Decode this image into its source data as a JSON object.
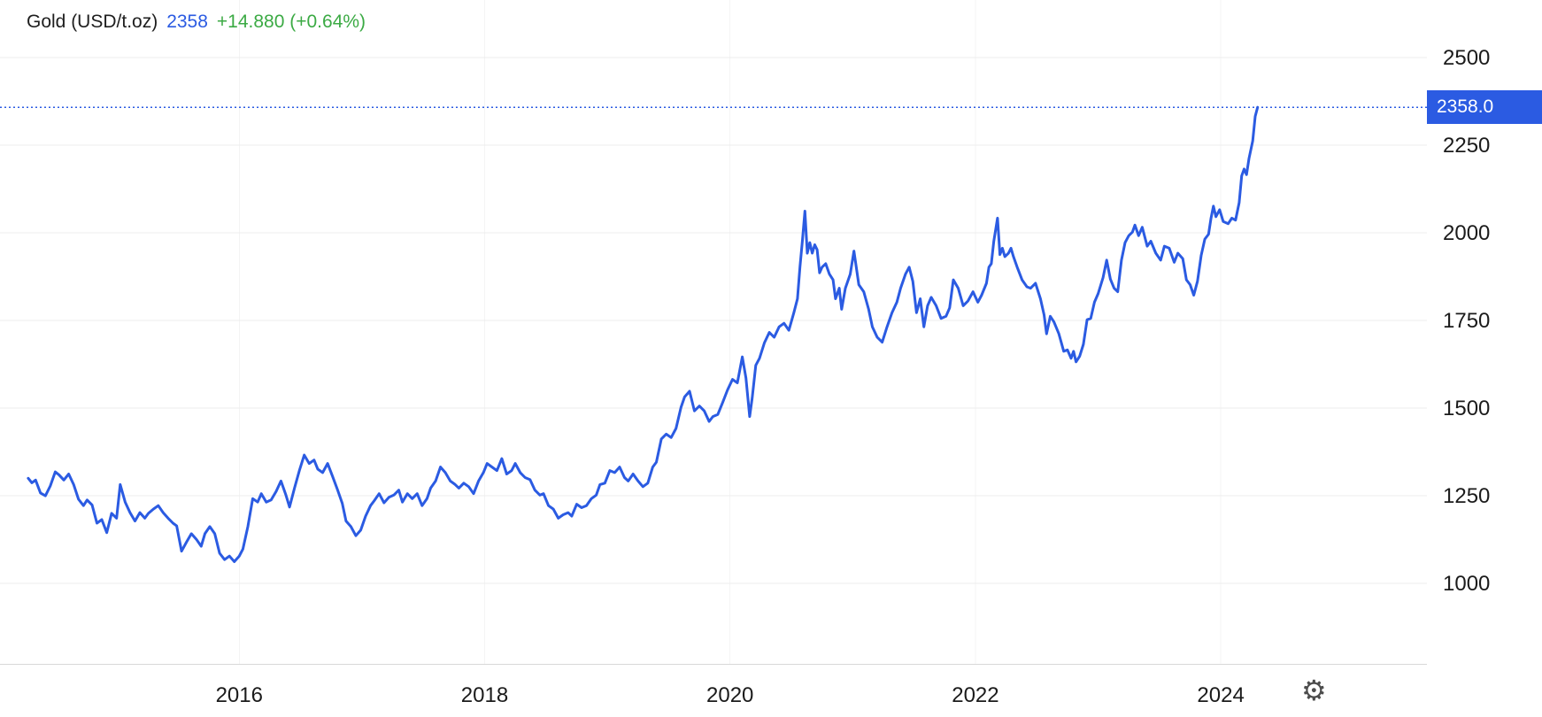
{
  "header": {
    "instrument": "Gold (USD/t.oz)",
    "price": "2358",
    "change": "+14.880 (+0.64%)"
  },
  "price_marker": {
    "label": "2358.0",
    "value": 2358
  },
  "icons": {
    "settings_gear": "⚙"
  },
  "colors": {
    "line_blue": "#2B5BE2",
    "positive_green": "#3BAA44",
    "grid": "#ececec",
    "badge_text": "#ffffff"
  },
  "chart_data": {
    "type": "line",
    "title": "Gold (USD/t.oz)",
    "xlabel": "",
    "ylabel": "",
    "unit": "USD/t.oz",
    "current_value": 2358,
    "change_abs": 14.88,
    "change_pct": 0.64,
    "x_is": "decimal year",
    "x_ticks": [
      2016,
      2018,
      2020,
      2022,
      2024
    ],
    "y_ticks": [
      1000,
      1250,
      1500,
      1750,
      2000,
      2250,
      2500
    ],
    "xlim": [
      2014.05,
      2025.68
    ],
    "ylim": [
      768,
      2664
    ],
    "grid": "horizontal light + vertical very light",
    "legend": "none",
    "series": [
      {
        "name": "Gold spot price (USD/t.oz)",
        "points": [
          [
            2014.28,
            1300
          ],
          [
            2014.31,
            1287
          ],
          [
            2014.34,
            1295
          ],
          [
            2014.38,
            1258
          ],
          [
            2014.42,
            1250
          ],
          [
            2014.46,
            1278
          ],
          [
            2014.5,
            1318
          ],
          [
            2014.53,
            1310
          ],
          [
            2014.57,
            1295
          ],
          [
            2014.61,
            1312
          ],
          [
            2014.65,
            1282
          ],
          [
            2014.69,
            1240
          ],
          [
            2014.73,
            1222
          ],
          [
            2014.76,
            1238
          ],
          [
            2014.8,
            1224
          ],
          [
            2014.84,
            1172
          ],
          [
            2014.88,
            1182
          ],
          [
            2014.92,
            1145
          ],
          [
            2014.96,
            1200
          ],
          [
            2015.0,
            1186
          ],
          [
            2015.03,
            1282
          ],
          [
            2015.07,
            1232
          ],
          [
            2015.11,
            1202
          ],
          [
            2015.15,
            1178
          ],
          [
            2015.19,
            1202
          ],
          [
            2015.23,
            1186
          ],
          [
            2015.26,
            1200
          ],
          [
            2015.3,
            1212
          ],
          [
            2015.34,
            1222
          ],
          [
            2015.38,
            1202
          ],
          [
            2015.42,
            1186
          ],
          [
            2015.46,
            1172
          ],
          [
            2015.49,
            1164
          ],
          [
            2015.53,
            1092
          ],
          [
            2015.57,
            1118
          ],
          [
            2015.61,
            1142
          ],
          [
            2015.65,
            1126
          ],
          [
            2015.69,
            1106
          ],
          [
            2015.72,
            1142
          ],
          [
            2015.76,
            1162
          ],
          [
            2015.8,
            1142
          ],
          [
            2015.84,
            1086
          ],
          [
            2015.88,
            1068
          ],
          [
            2015.92,
            1078
          ],
          [
            2015.96,
            1062
          ],
          [
            2016.0,
            1078
          ],
          [
            2016.03,
            1098
          ],
          [
            2016.07,
            1162
          ],
          [
            2016.11,
            1242
          ],
          [
            2016.15,
            1232
          ],
          [
            2016.18,
            1256
          ],
          [
            2016.22,
            1232
          ],
          [
            2016.26,
            1238
          ],
          [
            2016.3,
            1262
          ],
          [
            2016.34,
            1292
          ],
          [
            2016.38,
            1252
          ],
          [
            2016.41,
            1218
          ],
          [
            2016.45,
            1272
          ],
          [
            2016.49,
            1322
          ],
          [
            2016.53,
            1366
          ],
          [
            2016.57,
            1342
          ],
          [
            2016.61,
            1352
          ],
          [
            2016.64,
            1326
          ],
          [
            2016.68,
            1316
          ],
          [
            2016.72,
            1342
          ],
          [
            2016.76,
            1306
          ],
          [
            2016.8,
            1268
          ],
          [
            2016.84,
            1228
          ],
          [
            2016.87,
            1178
          ],
          [
            2016.91,
            1162
          ],
          [
            2016.95,
            1136
          ],
          [
            2016.99,
            1152
          ],
          [
            2017.03,
            1192
          ],
          [
            2017.07,
            1222
          ],
          [
            2017.1,
            1236
          ],
          [
            2017.14,
            1256
          ],
          [
            2017.18,
            1230
          ],
          [
            2017.22,
            1246
          ],
          [
            2017.26,
            1252
          ],
          [
            2017.3,
            1266
          ],
          [
            2017.33,
            1232
          ],
          [
            2017.37,
            1256
          ],
          [
            2017.41,
            1242
          ],
          [
            2017.45,
            1256
          ],
          [
            2017.49,
            1222
          ],
          [
            2017.53,
            1242
          ],
          [
            2017.56,
            1272
          ],
          [
            2017.6,
            1292
          ],
          [
            2017.64,
            1332
          ],
          [
            2017.68,
            1316
          ],
          [
            2017.72,
            1292
          ],
          [
            2017.76,
            1282
          ],
          [
            2017.79,
            1272
          ],
          [
            2017.83,
            1286
          ],
          [
            2017.87,
            1276
          ],
          [
            2017.91,
            1256
          ],
          [
            2017.95,
            1292
          ],
          [
            2017.99,
            1316
          ],
          [
            2018.02,
            1342
          ],
          [
            2018.06,
            1332
          ],
          [
            2018.1,
            1322
          ],
          [
            2018.14,
            1356
          ],
          [
            2018.18,
            1312
          ],
          [
            2018.22,
            1322
          ],
          [
            2018.25,
            1342
          ],
          [
            2018.29,
            1316
          ],
          [
            2018.33,
            1302
          ],
          [
            2018.37,
            1296
          ],
          [
            2018.41,
            1266
          ],
          [
            2018.45,
            1252
          ],
          [
            2018.48,
            1256
          ],
          [
            2018.52,
            1222
          ],
          [
            2018.56,
            1212
          ],
          [
            2018.6,
            1186
          ],
          [
            2018.64,
            1196
          ],
          [
            2018.68,
            1202
          ],
          [
            2018.71,
            1192
          ],
          [
            2018.75,
            1226
          ],
          [
            2018.79,
            1216
          ],
          [
            2018.83,
            1222
          ],
          [
            2018.87,
            1242
          ],
          [
            2018.91,
            1252
          ],
          [
            2018.94,
            1282
          ],
          [
            2018.98,
            1286
          ],
          [
            2019.02,
            1322
          ],
          [
            2019.06,
            1316
          ],
          [
            2019.1,
            1332
          ],
          [
            2019.14,
            1302
          ],
          [
            2019.17,
            1292
          ],
          [
            2019.21,
            1312
          ],
          [
            2019.25,
            1292
          ],
          [
            2019.29,
            1276
          ],
          [
            2019.33,
            1286
          ],
          [
            2019.37,
            1332
          ],
          [
            2019.4,
            1346
          ],
          [
            2019.44,
            1412
          ],
          [
            2019.48,
            1426
          ],
          [
            2019.52,
            1416
          ],
          [
            2019.56,
            1442
          ],
          [
            2019.6,
            1502
          ],
          [
            2019.63,
            1532
          ],
          [
            2019.67,
            1548
          ],
          [
            2019.71,
            1492
          ],
          [
            2019.75,
            1506
          ],
          [
            2019.79,
            1492
          ],
          [
            2019.83,
            1462
          ],
          [
            2019.86,
            1476
          ],
          [
            2019.9,
            1482
          ],
          [
            2019.94,
            1516
          ],
          [
            2019.98,
            1552
          ],
          [
            2020.02,
            1582
          ],
          [
            2020.06,
            1572
          ],
          [
            2020.1,
            1646
          ],
          [
            2020.13,
            1586
          ],
          [
            2020.16,
            1476
          ],
          [
            2020.18,
            1528
          ],
          [
            2020.21,
            1622
          ],
          [
            2020.24,
            1642
          ],
          [
            2020.28,
            1686
          ],
          [
            2020.32,
            1716
          ],
          [
            2020.36,
            1702
          ],
          [
            2020.4,
            1732
          ],
          [
            2020.44,
            1742
          ],
          [
            2020.48,
            1722
          ],
          [
            2020.52,
            1772
          ],
          [
            2020.55,
            1812
          ],
          [
            2020.57,
            1902
          ],
          [
            2020.59,
            1978
          ],
          [
            2020.61,
            2062
          ],
          [
            2020.63,
            1942
          ],
          [
            2020.65,
            1972
          ],
          [
            2020.67,
            1942
          ],
          [
            2020.69,
            1966
          ],
          [
            2020.71,
            1952
          ],
          [
            2020.73,
            1886
          ],
          [
            2020.75,
            1902
          ],
          [
            2020.78,
            1912
          ],
          [
            2020.81,
            1882
          ],
          [
            2020.84,
            1866
          ],
          [
            2020.86,
            1812
          ],
          [
            2020.89,
            1842
          ],
          [
            2020.91,
            1782
          ],
          [
            2020.94,
            1842
          ],
          [
            2020.98,
            1882
          ],
          [
            2021.01,
            1948
          ],
          [
            2021.05,
            1852
          ],
          [
            2021.09,
            1832
          ],
          [
            2021.13,
            1782
          ],
          [
            2021.16,
            1732
          ],
          [
            2021.2,
            1702
          ],
          [
            2021.24,
            1688
          ],
          [
            2021.28,
            1732
          ],
          [
            2021.32,
            1772
          ],
          [
            2021.36,
            1802
          ],
          [
            2021.39,
            1842
          ],
          [
            2021.43,
            1882
          ],
          [
            2021.46,
            1902
          ],
          [
            2021.49,
            1862
          ],
          [
            2021.52,
            1772
          ],
          [
            2021.55,
            1812
          ],
          [
            2021.58,
            1732
          ],
          [
            2021.61,
            1792
          ],
          [
            2021.64,
            1816
          ],
          [
            2021.68,
            1792
          ],
          [
            2021.72,
            1756
          ],
          [
            2021.76,
            1762
          ],
          [
            2021.79,
            1786
          ],
          [
            2021.82,
            1866
          ],
          [
            2021.86,
            1842
          ],
          [
            2021.9,
            1792
          ],
          [
            2021.94,
            1806
          ],
          [
            2021.98,
            1832
          ],
          [
            2022.02,
            1802
          ],
          [
            2022.05,
            1822
          ],
          [
            2022.09,
            1856
          ],
          [
            2022.11,
            1902
          ],
          [
            2022.13,
            1912
          ],
          [
            2022.15,
            1976
          ],
          [
            2022.18,
            2042
          ],
          [
            2022.2,
            1938
          ],
          [
            2022.22,
            1956
          ],
          [
            2022.24,
            1932
          ],
          [
            2022.27,
            1942
          ],
          [
            2022.29,
            1956
          ],
          [
            2022.31,
            1932
          ],
          [
            2022.34,
            1902
          ],
          [
            2022.38,
            1866
          ],
          [
            2022.42,
            1846
          ],
          [
            2022.45,
            1842
          ],
          [
            2022.49,
            1856
          ],
          [
            2022.53,
            1812
          ],
          [
            2022.56,
            1766
          ],
          [
            2022.58,
            1712
          ],
          [
            2022.61,
            1762
          ],
          [
            2022.64,
            1746
          ],
          [
            2022.68,
            1712
          ],
          [
            2022.72,
            1662
          ],
          [
            2022.75,
            1666
          ],
          [
            2022.78,
            1642
          ],
          [
            2022.8,
            1662
          ],
          [
            2022.82,
            1632
          ],
          [
            2022.85,
            1648
          ],
          [
            2022.88,
            1682
          ],
          [
            2022.91,
            1752
          ],
          [
            2022.94,
            1756
          ],
          [
            2022.97,
            1802
          ],
          [
            2023.0,
            1826
          ],
          [
            2023.04,
            1872
          ],
          [
            2023.07,
            1922
          ],
          [
            2023.1,
            1868
          ],
          [
            2023.13,
            1842
          ],
          [
            2023.16,
            1832
          ],
          [
            2023.19,
            1922
          ],
          [
            2023.22,
            1972
          ],
          [
            2023.25,
            1992
          ],
          [
            2023.28,
            2002
          ],
          [
            2023.3,
            2022
          ],
          [
            2023.33,
            1992
          ],
          [
            2023.36,
            2016
          ],
          [
            2023.4,
            1962
          ],
          [
            2023.43,
            1976
          ],
          [
            2023.47,
            1942
          ],
          [
            2023.51,
            1922
          ],
          [
            2023.54,
            1962
          ],
          [
            2023.58,
            1956
          ],
          [
            2023.62,
            1916
          ],
          [
            2023.65,
            1942
          ],
          [
            2023.69,
            1926
          ],
          [
            2023.72,
            1866
          ],
          [
            2023.75,
            1852
          ],
          [
            2023.78,
            1822
          ],
          [
            2023.81,
            1862
          ],
          [
            2023.84,
            1936
          ],
          [
            2023.87,
            1982
          ],
          [
            2023.9,
            1996
          ],
          [
            2023.92,
            2042
          ],
          [
            2023.94,
            2076
          ],
          [
            2023.96,
            2046
          ],
          [
            2023.99,
            2066
          ],
          [
            2024.02,
            2032
          ],
          [
            2024.06,
            2026
          ],
          [
            2024.09,
            2042
          ],
          [
            2024.12,
            2036
          ],
          [
            2024.15,
            2086
          ],
          [
            2024.17,
            2162
          ],
          [
            2024.19,
            2182
          ],
          [
            2024.21,
            2166
          ],
          [
            2024.23,
            2212
          ],
          [
            2024.26,
            2262
          ],
          [
            2024.28,
            2332
          ],
          [
            2024.3,
            2358
          ]
        ]
      }
    ]
  }
}
